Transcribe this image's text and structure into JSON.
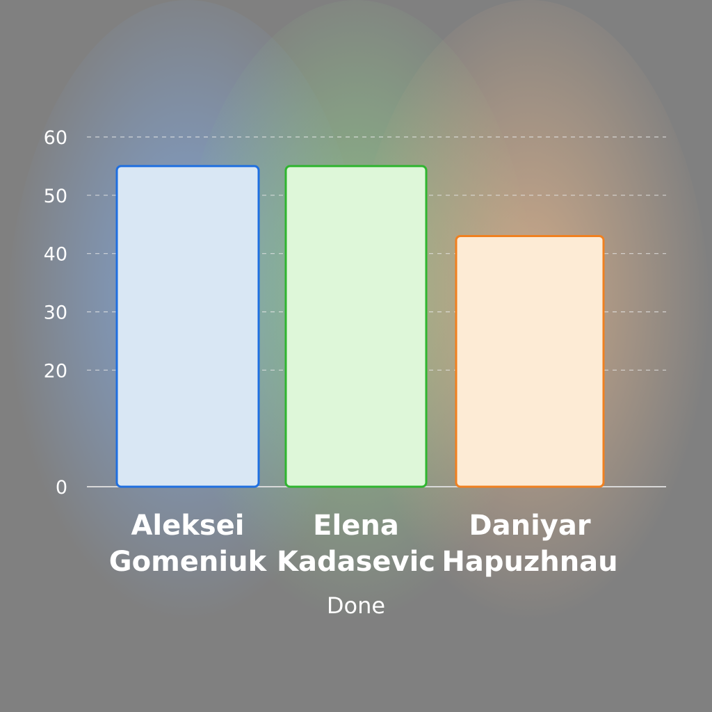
{
  "chart_data": {
    "type": "bar",
    "categories": [
      "Aleksei Gomeniuk",
      "Elena Kadasevic",
      "Daniyar Hapuzhnau"
    ],
    "category_lines": [
      [
        "Aleksei",
        "Gomeniuk"
      ],
      [
        "Elena",
        "Kadasevic"
      ],
      [
        "Daniyar",
        "Hapuzhnau"
      ]
    ],
    "values": [
      55,
      55,
      43
    ],
    "xlabel": "Done",
    "ylabel": "",
    "ylim": [
      0,
      60
    ],
    "yticks": [
      0,
      20,
      30,
      40,
      50,
      60
    ],
    "grid": true,
    "bar_colors": [
      {
        "stroke": "#1f6fe0",
        "fill": "#d9e7f4",
        "glow": "#7fa8e0"
      },
      {
        "stroke": "#2fb52f",
        "fill": "#def7d9",
        "glow": "#8fc98a"
      },
      {
        "stroke": "#f08020",
        "fill": "#fdebd5",
        "glow": "#d9b08a"
      }
    ],
    "background": "#808080"
  }
}
